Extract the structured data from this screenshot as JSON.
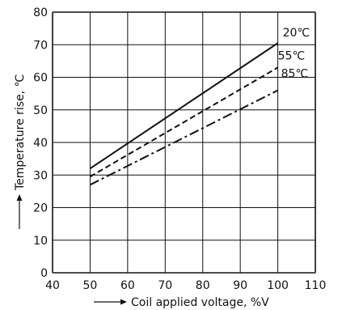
{
  "chart_data": {
    "type": "line",
    "title": "",
    "xlabel": "Coil applied voltage, %V",
    "ylabel": "Temperature rise, ℃",
    "xlim": [
      40,
      110
    ],
    "ylim": [
      0,
      80
    ],
    "x_ticks": [
      40,
      50,
      60,
      70,
      80,
      90,
      100,
      110
    ],
    "y_ticks": [
      0,
      10,
      20,
      30,
      40,
      50,
      60,
      70,
      80
    ],
    "x_tick_labels": [
      "40",
      "50",
      "60",
      "70",
      "80",
      "90",
      "100",
      "110"
    ],
    "y_tick_labels": [
      "0",
      "10",
      "20",
      "30",
      "40",
      "50",
      "60",
      "70",
      "80"
    ],
    "grid": true,
    "legend": "inline labels at line ends",
    "series": [
      {
        "name": "20℃",
        "style": "solid",
        "x": [
          50,
          100
        ],
        "y": [
          32,
          70.5
        ]
      },
      {
        "name": "55℃",
        "style": "dashed",
        "x": [
          50,
          100
        ],
        "y": [
          29.5,
          63
        ]
      },
      {
        "name": "85℃",
        "style": "dashdot",
        "x": [
          50,
          100
        ],
        "y": [
          27,
          56
        ]
      }
    ]
  },
  "colors": {
    "line": "#111111",
    "grid": "#111111",
    "background": "#ffffff"
  }
}
